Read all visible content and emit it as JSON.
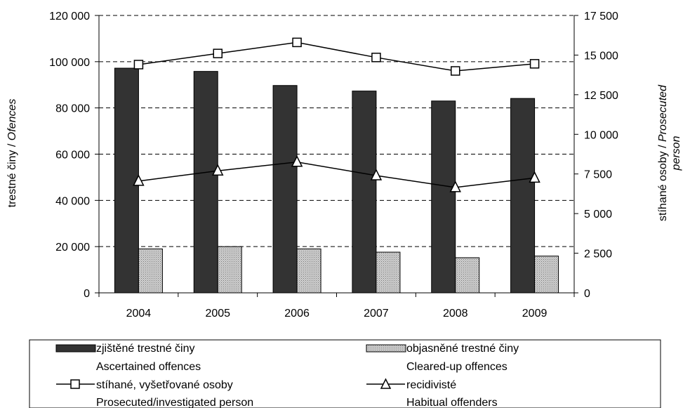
{
  "chart_data": {
    "type": "bar",
    "categories": [
      "2004",
      "2005",
      "2006",
      "2007",
      "2008",
      "2009"
    ],
    "y_left": {
      "label_plain": "trestné činy / ",
      "label_italic": "Ofences",
      "lim": [
        0,
        120000
      ],
      "ticks": [
        0,
        20000,
        40000,
        60000,
        80000,
        100000,
        120000
      ],
      "tick_labels": [
        "0",
        "20 000",
        "40 000",
        "60 000",
        "80 000",
        "100 000",
        "120 000"
      ]
    },
    "y_right": {
      "label_plain": "stíhané osoby / ",
      "label_italic_1": "Prosecuted",
      "label_italic_2": "person",
      "lim": [
        0,
        17500
      ],
      "ticks": [
        0,
        2500,
        5000,
        7500,
        10000,
        12500,
        15000,
        17500
      ],
      "tick_labels": [
        "0",
        "2 500",
        "5 000",
        "7 500",
        "10 000",
        "12 500",
        "15 000",
        "17 500"
      ]
    },
    "grid": "horizontal dashed",
    "series": [
      {
        "name": "zjištěné trestné činy",
        "name_en": "Ascertained offences",
        "kind": "bar",
        "axis": "left",
        "color": "#333333",
        "values": [
          97200,
          95800,
          89700,
          87300,
          83000,
          84100
        ]
      },
      {
        "name": "objasněné trestné činy",
        "name_en": "Cleared-up offences",
        "kind": "bar",
        "axis": "left",
        "color": "#bdbdbd",
        "values": [
          19000,
          20000,
          19000,
          17600,
          15200,
          15900
        ]
      },
      {
        "name": "stíhané, vyšetřované osoby",
        "name_en": "Prosecuted/investigated person",
        "kind": "line",
        "marker": "square",
        "axis": "right",
        "values": [
          14400,
          15100,
          15800,
          14850,
          14000,
          14450
        ]
      },
      {
        "name": "recidivisté",
        "name_en": "Habitual offenders",
        "kind": "line",
        "marker": "triangle",
        "axis": "right",
        "values": [
          7050,
          7700,
          8250,
          7400,
          6650,
          7250
        ]
      }
    ],
    "legend_position": "bottom"
  }
}
